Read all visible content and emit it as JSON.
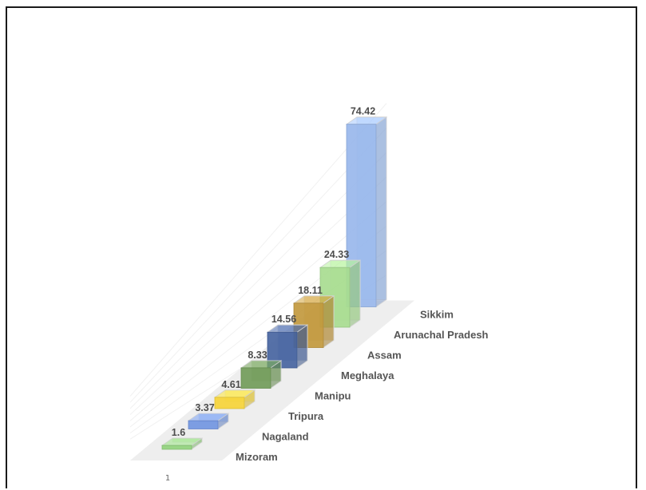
{
  "chart_data": {
    "type": "bar",
    "style": "3d-column",
    "categories": [
      "Mizoram",
      "Nagaland",
      "Tripura",
      "Manipu",
      "Meghalaya",
      "Assam",
      "Arunachal Pradesh",
      "Sikkim"
    ],
    "values": [
      1.6,
      3.37,
      4.61,
      8.33,
      14.56,
      18.11,
      24.33,
      74.42
    ],
    "value_labels": [
      "1.6",
      "3.37",
      "4.61",
      "8.33",
      "14.56",
      "18.11",
      "24.33",
      "74.42"
    ],
    "colors": [
      "#8fd17a",
      "#6f93e0",
      "#f6d334",
      "#6f9a56",
      "#44629f",
      "#c1973a",
      "#a6dc8e",
      "#97b6eb"
    ],
    "x_tick_labels": [
      "1"
    ],
    "title": "",
    "xlabel": "",
    "ylabel": "",
    "ylim": [
      0,
      80
    ],
    "grid": true,
    "legend": "none"
  }
}
